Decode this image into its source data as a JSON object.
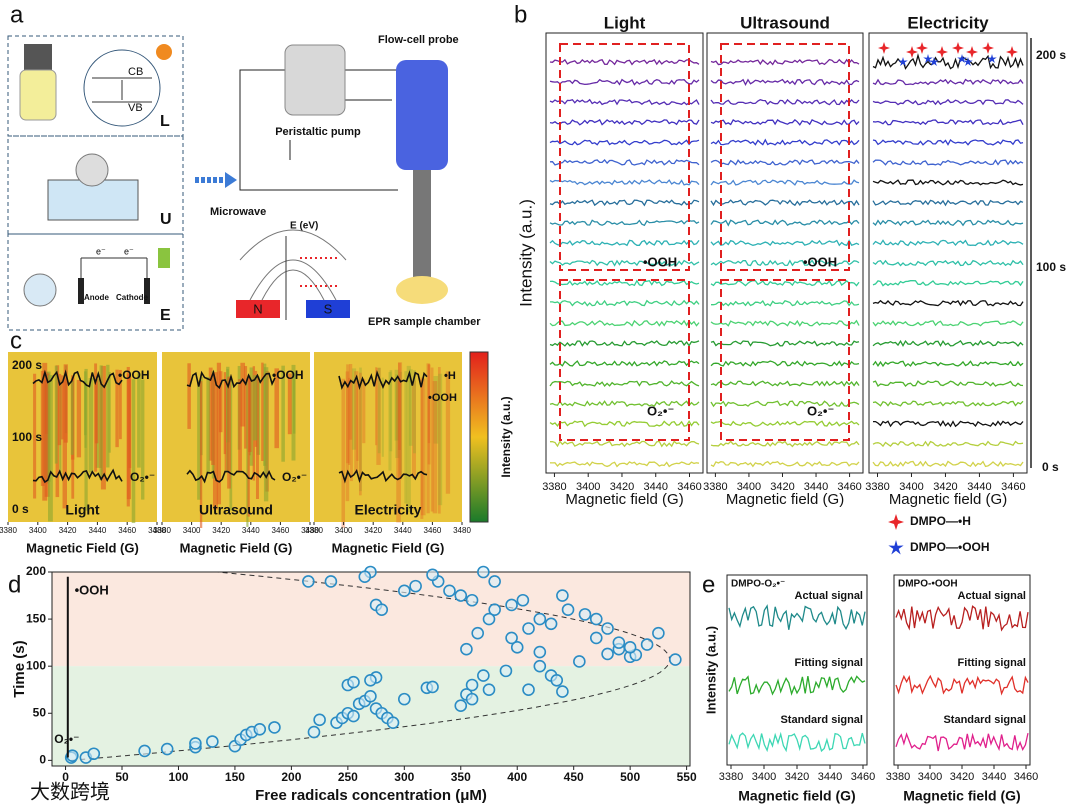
{
  "panel_labels": [
    "a",
    "b",
    "c",
    "d",
    "e"
  ],
  "panel_a": {
    "band_labels": [
      "CB",
      "VB"
    ],
    "mode_labels": [
      "L",
      "U",
      "E"
    ],
    "electrode_labels": [
      "Anode",
      "Cathode"
    ],
    "electron_labels": [
      "e⁻",
      "e⁻"
    ],
    "pump": "Peristaltic pump",
    "probe": "Flow-cell probe",
    "microwave": "Microwave",
    "energy": "E (eV)",
    "magnet_labels": [
      "N",
      "S"
    ],
    "chamber": "EPR sample chamber"
  },
  "panel_b": {
    "columns": [
      "Light",
      "Ultrasound",
      "Electricity"
    ],
    "xlabel": "Magnetic field (G)",
    "ylabel": "Intensity (a.u.)",
    "xlim": [
      3375,
      3468
    ],
    "xticks": [
      3380,
      3400,
      3420,
      3440,
      3460
    ],
    "time_labels": [
      "200 s",
      "100 s",
      "0 s"
    ],
    "annotations": [
      "•OOH",
      "O₂•⁻"
    ],
    "legend": [
      {
        "name": "DMPO—•H",
        "color": "#e8262a"
      },
      {
        "name": "DMPO—•OOH",
        "color": "#1f3fd6"
      }
    ]
  },
  "panel_c": {
    "columns": [
      "Light",
      "Ultrasound",
      "Electricity"
    ],
    "xlabel": "Magnetic Field (G)",
    "xlim": [
      3380,
      3480
    ],
    "xticks": [
      3380,
      3400,
      3420,
      3440,
      3460,
      3480
    ],
    "time_labels": [
      "200 s",
      "100 s",
      "0 s"
    ],
    "annotations": [
      "•OOH",
      "O₂•⁻",
      "•H",
      "•OOH"
    ],
    "colorbar_label": "Intensity (a.u.)"
  },
  "chart_data": {
    "type": "scatter",
    "xlabel": "Free radicals concentration (μM)",
    "ylabel": "Time (s)",
    "annotations": [
      "•OOH",
      "O₂•⁻"
    ],
    "color": "#2b8cc4",
    "xlim": [
      -12,
      553
    ],
    "ylim": [
      -6,
      200
    ],
    "xticks": [
      0,
      50,
      100,
      150,
      200,
      250,
      300,
      350,
      400,
      450,
      500,
      550
    ],
    "yticks": [
      0,
      50,
      100,
      150,
      200
    ],
    "x": [
      5,
      6,
      18,
      25,
      70,
      90,
      115,
      115,
      130,
      150,
      155,
      160,
      165,
      172,
      185,
      220,
      225,
      240,
      245,
      250,
      255,
      260,
      265,
      270,
      275,
      280,
      285,
      290,
      275,
      270,
      250,
      255,
      300,
      320,
      325,
      350,
      355,
      360,
      360,
      370,
      375,
      390,
      400,
      410,
      420,
      430,
      435,
      440,
      455,
      480,
      490,
      500,
      505,
      515,
      540,
      355,
      365,
      375,
      380,
      395,
      405,
      410,
      420,
      430,
      440,
      445,
      460,
      470,
      480,
      490,
      500,
      525,
      310,
      330,
      350,
      360,
      370,
      380,
      340,
      270,
      265,
      235,
      215,
      325,
      275,
      280,
      300,
      395,
      420,
      470
    ],
    "values": [
      3,
      5,
      3,
      7,
      10,
      12,
      14,
      18,
      20,
      15,
      22,
      27,
      30,
      33,
      35,
      30,
      43,
      40,
      45,
      50,
      47,
      60,
      63,
      68,
      55,
      50,
      45,
      40,
      88,
      85,
      80,
      83,
      65,
      77,
      78,
      58,
      70,
      65,
      80,
      90,
      75,
      95,
      120,
      75,
      100,
      90,
      85,
      73,
      105,
      113,
      118,
      110,
      112,
      123,
      107,
      118,
      135,
      150,
      160,
      165,
      170,
      140,
      150,
      145,
      175,
      160,
      155,
      150,
      140,
      125,
      120,
      135,
      185,
      190,
      175,
      170,
      200,
      190,
      180,
      200,
      195,
      190,
      190,
      197,
      165,
      160,
      180,
      130,
      115,
      130
    ]
  },
  "panel_e": {
    "titles": [
      "DMPO-O₂•⁻",
      "DMPO-•OOH"
    ],
    "signals": [
      "Actual signal",
      "Fitting signal",
      "Standard signal"
    ],
    "xlabel": "Magnetic field (G)",
    "ylabel": "Intensity (a.u.)",
    "xlim": [
      3380,
      3460
    ],
    "xticks": [
      3380,
      3400,
      3420,
      3440,
      3460
    ]
  },
  "watermark": "大数跨境"
}
